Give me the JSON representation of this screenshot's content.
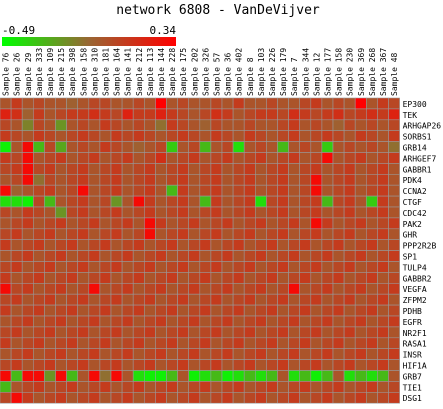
{
  "chart_data": {
    "type": "heatmap",
    "title": "network 6808 - VanDeVijver",
    "color_scale": {
      "min": -0.49,
      "max": 0.34,
      "min_label": "-0.49",
      "max_label": "0.34",
      "low_color": "#00ff00",
      "mid_color": "#996633",
      "high_color": "#ff0000"
    },
    "columns": [
      "Sample 76",
      "Sample 26",
      "Sample 29",
      "Sample 333",
      "Sample 109",
      "Sample 215",
      "Sample 398",
      "Sample 158",
      "Sample 310",
      "Sample 181",
      "Sample 164",
      "Sample 141",
      "Sample 212",
      "Sample 113",
      "Sample 144",
      "Sample 228",
      "Sample 175",
      "Sample 202",
      "Sample 326",
      "Sample 57",
      "Sample 36",
      "Sample 402",
      "Sample 8",
      "Sample 103",
      "Sample 226",
      "Sample 179",
      "Sample 7",
      "Sample 344",
      "Sample 12",
      "Sample 177",
      "Sample 158",
      "Sample 230",
      "Sample 369",
      "Sample 268",
      "Sample 367",
      "Sample 48"
    ],
    "rows": [
      "EP300",
      "TEK",
      "ARHGAP26",
      "SORBS1",
      "GRB14",
      "ARHGEF7",
      "GABBR1",
      "PDK4",
      "CCNA2",
      "CTGF",
      "CDC42",
      "PAK2",
      "GHR",
      "PPP2R2B",
      "SP1",
      "TULP4",
      "GABBR2",
      "VEGFA",
      "ZFPM2",
      "PDHB",
      "EGFR",
      "NR2F1",
      "RASA1",
      "INSR",
      "HIF1A",
      "GRB7",
      "TIE1",
      "DSG1"
    ],
    "values": [
      [
        0.0,
        0.1,
        0.0,
        0.05,
        0.0,
        0.0,
        -0.05,
        0.0,
        0.05,
        0.05,
        0.0,
        0.0,
        0.05,
        0.0,
        0.34,
        0.0,
        0.05,
        0.0,
        0.0,
        0.05,
        0.0,
        0.1,
        0.0,
        0.0,
        0.05,
        0.0,
        0.0,
        0.05,
        0.1,
        0.0,
        0.05,
        0.0,
        0.34,
        0.0,
        0.1,
        0.05
      ],
      [
        0.2,
        0.15,
        -0.05,
        0.1,
        0.0,
        0.05,
        0.1,
        0.1,
        0.15,
        0.1,
        0.05,
        0.2,
        0.1,
        0.1,
        0.2,
        0.1,
        0.05,
        0.0,
        0.05,
        0.15,
        0.1,
        0.0,
        0.05,
        0.1,
        0.1,
        0.05,
        0.15,
        0.1,
        0.05,
        0.1,
        0.15,
        0.05,
        0.1,
        0.15,
        0.1,
        0.2
      ],
      [
        0.05,
        0.0,
        -0.15,
        0.05,
        0.0,
        -0.2,
        0.0,
        0.05,
        0.0,
        0.1,
        0.05,
        0.0,
        0.05,
        0.0,
        -0.1,
        0.1,
        0.05,
        0.0,
        -0.05,
        0.05,
        0.0,
        0.0,
        0.05,
        0.0,
        0.0,
        0.05,
        0.1,
        0.0,
        0.05,
        0.0,
        -0.05,
        0.05,
        0.0,
        0.05,
        0.0,
        0.05
      ],
      [
        0.1,
        0.05,
        0.0,
        0.1,
        0.05,
        0.0,
        0.05,
        0.1,
        0.05,
        0.0,
        0.1,
        0.05,
        0.1,
        0.05,
        0.0,
        0.05,
        0.1,
        0.05,
        0.0,
        0.1,
        0.05,
        0.0,
        0.1,
        0.05,
        0.0,
        0.05,
        0.1,
        0.0,
        0.05,
        0.1,
        0.05,
        0.0,
        0.1,
        0.05,
        0.0,
        0.1
      ],
      [
        -0.45,
        0.0,
        0.3,
        -0.3,
        0.05,
        -0.25,
        0.0,
        0.05,
        0.0,
        0.1,
        0.05,
        0.0,
        -0.05,
        0.0,
        0.05,
        -0.35,
        0.0,
        0.05,
        -0.3,
        0.0,
        0.05,
        -0.4,
        0.0,
        0.05,
        0.0,
        -0.3,
        0.0,
        0.05,
        0.0,
        -0.35,
        0.0,
        0.05,
        0.0,
        0.05,
        0.0,
        -0.1
      ],
      [
        0.1,
        0.05,
        0.3,
        0.0,
        0.05,
        0.1,
        0.0,
        0.05,
        0.1,
        0.0,
        0.05,
        0.1,
        0.0,
        0.05,
        0.15,
        0.0,
        0.05,
        0.1,
        0.0,
        0.05,
        0.1,
        0.0,
        0.05,
        0.1,
        0.0,
        0.05,
        0.1,
        0.0,
        0.05,
        0.3,
        0.0,
        0.05,
        0.1,
        0.0,
        0.05,
        0.1
      ],
      [
        0.05,
        0.1,
        0.3,
        0.05,
        0.1,
        0.0,
        0.05,
        0.1,
        0.0,
        0.05,
        0.1,
        0.0,
        0.05,
        0.1,
        0.0,
        0.05,
        0.1,
        0.0,
        0.05,
        0.1,
        0.0,
        0.05,
        0.1,
        0.0,
        0.05,
        0.1,
        0.0,
        0.05,
        0.1,
        0.0,
        0.05,
        0.1,
        0.0,
        0.05,
        0.1,
        0.0
      ],
      [
        0.0,
        0.05,
        0.3,
        -0.1,
        0.05,
        0.0,
        0.05,
        0.1,
        0.0,
        0.05,
        0.1,
        0.0,
        0.05,
        0.1,
        0.0,
        0.05,
        0.1,
        0.0,
        0.05,
        0.1,
        0.0,
        0.05,
        0.1,
        0.0,
        0.05,
        0.1,
        0.0,
        0.05,
        0.3,
        0.0,
        0.05,
        0.1,
        0.0,
        0.05,
        0.1,
        0.0
      ],
      [
        0.3,
        -0.05,
        0.0,
        0.05,
        0.1,
        0.0,
        0.05,
        0.3,
        0.0,
        0.05,
        0.1,
        0.0,
        0.05,
        0.1,
        0.0,
        -0.3,
        0.1,
        0.0,
        0.05,
        0.1,
        0.0,
        0.05,
        0.1,
        0.0,
        0.05,
        0.1,
        0.0,
        0.05,
        0.3,
        0.0,
        0.05,
        0.1,
        0.0,
        0.05,
        0.1,
        0.0
      ],
      [
        -0.4,
        -0.4,
        -0.45,
        0.05,
        -0.3,
        0.0,
        0.05,
        0.1,
        0.0,
        0.05,
        -0.2,
        0.0,
        0.3,
        0.1,
        0.0,
        0.05,
        0.1,
        0.0,
        -0.3,
        0.1,
        0.0,
        0.05,
        0.1,
        -0.4,
        0.05,
        0.1,
        0.0,
        0.05,
        0.1,
        -0.3,
        0.05,
        0.1,
        0.0,
        -0.35,
        0.1,
        0.0
      ],
      [
        0.05,
        0.0,
        0.1,
        0.05,
        0.0,
        -0.2,
        0.05,
        0.1,
        0.0,
        0.05,
        0.1,
        0.0,
        0.05,
        0.1,
        0.0,
        0.05,
        0.1,
        0.0,
        0.05,
        0.1,
        0.0,
        0.05,
        0.1,
        0.0,
        0.05,
        0.1,
        0.0,
        0.05,
        0.1,
        0.0,
        0.05,
        0.1,
        0.0,
        0.05,
        0.1,
        0.0
      ],
      [
        0.0,
        0.05,
        0.1,
        0.0,
        0.05,
        0.1,
        0.0,
        0.05,
        0.1,
        0.0,
        0.05,
        0.1,
        0.0,
        0.3,
        0.1,
        0.0,
        0.05,
        0.1,
        0.0,
        0.05,
        0.1,
        0.0,
        0.05,
        0.1,
        0.0,
        0.05,
        0.1,
        0.0,
        0.3,
        0.1,
        0.0,
        0.05,
        0.1,
        0.0,
        0.05,
        0.1
      ],
      [
        0.05,
        0.1,
        0.0,
        0.05,
        0.1,
        0.0,
        0.05,
        0.1,
        0.0,
        0.05,
        0.1,
        0.0,
        0.05,
        0.3,
        0.0,
        0.05,
        0.1,
        0.0,
        0.05,
        0.1,
        0.0,
        0.05,
        0.1,
        0.0,
        0.05,
        0.1,
        0.0,
        0.05,
        0.1,
        0.0,
        0.05,
        0.1,
        0.0,
        0.05,
        0.1,
        0.0
      ],
      [
        0.1,
        0.0,
        0.05,
        0.1,
        0.0,
        0.05,
        0.1,
        0.0,
        0.05,
        0.1,
        0.0,
        0.05,
        0.1,
        0.0,
        0.05,
        0.1,
        0.0,
        0.05,
        0.1,
        0.0,
        0.05,
        0.1,
        0.0,
        0.05,
        0.1,
        0.0,
        0.05,
        0.1,
        0.0,
        0.05,
        0.1,
        0.0,
        0.05,
        0.1,
        0.0,
        0.05
      ],
      [
        0.0,
        0.05,
        0.1,
        0.0,
        0.05,
        0.1,
        0.0,
        0.05,
        0.1,
        0.0,
        0.05,
        0.1,
        0.0,
        0.05,
        0.1,
        0.0,
        0.05,
        0.1,
        0.0,
        0.05,
        0.1,
        0.0,
        0.05,
        0.1,
        0.0,
        0.05,
        0.1,
        0.0,
        0.05,
        0.1,
        0.0,
        0.05,
        0.1,
        0.0,
        0.05,
        0.1
      ],
      [
        0.05,
        0.1,
        0.0,
        0.05,
        0.1,
        0.0,
        0.05,
        0.1,
        0.0,
        0.05,
        0.1,
        0.0,
        0.05,
        0.1,
        0.0,
        0.05,
        0.1,
        0.0,
        0.05,
        0.1,
        0.0,
        0.05,
        0.1,
        0.0,
        0.05,
        0.1,
        0.0,
        0.05,
        0.1,
        0.0,
        0.05,
        0.1,
        0.0,
        0.05,
        0.1,
        0.0
      ],
      [
        0.1,
        0.0,
        0.05,
        0.1,
        0.0,
        0.05,
        0.1,
        0.0,
        0.05,
        0.1,
        0.0,
        0.05,
        0.1,
        0.0,
        0.05,
        0.1,
        0.0,
        0.05,
        0.1,
        0.0,
        0.05,
        0.1,
        0.0,
        0.05,
        0.1,
        0.0,
        0.05,
        0.1,
        0.0,
        0.05,
        0.1,
        0.0,
        0.05,
        0.1,
        0.0,
        0.05
      ],
      [
        0.3,
        0.05,
        0.1,
        0.0,
        0.05,
        0.1,
        0.0,
        0.05,
        0.3,
        0.0,
        0.05,
        0.1,
        0.0,
        0.05,
        0.1,
        0.0,
        0.05,
        0.1,
        0.0,
        0.05,
        0.1,
        0.0,
        0.05,
        0.1,
        0.0,
        0.05,
        0.3,
        0.0,
        0.05,
        0.1,
        0.0,
        0.05,
        0.1,
        0.0,
        0.05,
        0.1
      ],
      [
        0.05,
        0.1,
        0.0,
        0.05,
        0.1,
        0.0,
        0.05,
        0.1,
        0.0,
        0.05,
        0.1,
        0.0,
        0.05,
        0.1,
        0.0,
        0.05,
        0.1,
        0.0,
        0.05,
        0.1,
        0.0,
        0.05,
        0.1,
        0.0,
        0.05,
        0.1,
        0.0,
        0.05,
        0.1,
        0.0,
        0.05,
        0.1,
        0.0,
        0.05,
        0.1,
        0.0
      ],
      [
        0.1,
        0.0,
        0.05,
        0.1,
        0.0,
        0.05,
        0.1,
        0.0,
        0.05,
        0.1,
        0.0,
        0.05,
        0.1,
        0.0,
        0.05,
        0.1,
        0.0,
        0.05,
        0.1,
        0.0,
        0.05,
        0.1,
        0.0,
        0.05,
        0.1,
        0.0,
        0.05,
        0.1,
        0.0,
        0.05,
        0.1,
        0.0,
        0.05,
        0.1,
        0.0,
        0.05
      ],
      [
        0.0,
        0.05,
        0.1,
        0.0,
        0.05,
        0.1,
        0.0,
        0.05,
        0.1,
        0.0,
        0.05,
        0.1,
        0.0,
        0.05,
        0.1,
        0.0,
        0.05,
        0.1,
        0.0,
        0.05,
        0.1,
        0.0,
        0.05,
        0.1,
        0.0,
        0.05,
        0.1,
        0.0,
        0.05,
        0.1,
        0.0,
        0.05,
        0.1,
        0.0,
        0.05,
        0.1
      ],
      [
        0.05,
        0.1,
        0.0,
        0.05,
        0.1,
        0.0,
        0.05,
        0.1,
        0.0,
        0.05,
        0.1,
        0.0,
        0.05,
        0.1,
        0.0,
        0.05,
        0.1,
        0.0,
        0.05,
        0.1,
        0.0,
        0.05,
        0.1,
        0.0,
        0.05,
        0.1,
        0.0,
        0.05,
        0.1,
        0.0,
        0.05,
        0.1,
        0.0,
        0.05,
        0.1,
        0.0
      ],
      [
        0.1,
        0.0,
        0.05,
        0.1,
        0.0,
        0.05,
        0.1,
        0.0,
        0.05,
        0.1,
        0.0,
        0.05,
        0.1,
        0.0,
        0.05,
        0.1,
        0.0,
        0.05,
        0.1,
        0.0,
        0.05,
        0.1,
        0.0,
        0.05,
        0.1,
        0.0,
        0.05,
        0.1,
        0.0,
        0.05,
        0.1,
        0.0,
        0.05,
        0.1,
        0.0,
        0.05
      ],
      [
        0.0,
        0.05,
        0.1,
        0.0,
        0.05,
        0.1,
        0.0,
        0.05,
        0.1,
        0.0,
        0.05,
        0.1,
        0.0,
        0.05,
        0.1,
        0.0,
        0.05,
        0.1,
        0.0,
        0.05,
        0.1,
        0.0,
        0.05,
        0.1,
        0.0,
        0.05,
        0.1,
        0.0,
        0.05,
        0.1,
        0.0,
        0.05,
        0.1,
        0.0,
        0.05,
        0.1
      ],
      [
        0.05,
        0.1,
        0.0,
        0.05,
        0.1,
        0.0,
        0.05,
        0.1,
        0.0,
        0.05,
        0.1,
        0.0,
        0.05,
        0.1,
        0.0,
        0.05,
        0.1,
        0.0,
        0.05,
        0.1,
        0.0,
        0.05,
        0.1,
        0.0,
        0.05,
        0.1,
        0.0,
        0.05,
        0.1,
        0.0,
        0.05,
        0.1,
        0.0,
        0.05,
        0.1,
        0.0
      ],
      [
        0.3,
        -0.3,
        0.3,
        0.3,
        -0.2,
        0.3,
        -0.3,
        0.0,
        0.3,
        -0.1,
        0.3,
        0.0,
        -0.4,
        -0.45,
        -0.45,
        -0.3,
        0.0,
        -0.45,
        -0.4,
        -0.3,
        -0.45,
        -0.4,
        -0.3,
        -0.4,
        -0.3,
        0.0,
        -0.4,
        -0.3,
        -0.45,
        -0.3,
        0.0,
        -0.4,
        -0.3,
        -0.4,
        -0.3,
        0.0
      ],
      [
        -0.3,
        0.0,
        0.05,
        0.1,
        0.0,
        0.05,
        0.1,
        0.0,
        0.05,
        0.1,
        0.0,
        0.05,
        0.1,
        0.0,
        0.05,
        0.1,
        0.0,
        0.05,
        0.1,
        0.0,
        0.05,
        0.1,
        0.0,
        0.05,
        0.1,
        0.0,
        0.05,
        0.1,
        0.0,
        0.05,
        0.1,
        0.0,
        0.05,
        0.1,
        0.0,
        0.05
      ],
      [
        0.05,
        0.3,
        0.1,
        0.0,
        0.05,
        0.1,
        0.0,
        0.05,
        0.1,
        0.0,
        0.05,
        0.1,
        0.0,
        0.05,
        0.1,
        0.0,
        0.05,
        0.1,
        0.0,
        0.05,
        0.1,
        0.0,
        0.05,
        0.1,
        0.0,
        0.05,
        0.1,
        0.0,
        0.05,
        0.1,
        0.0,
        0.05,
        0.1,
        0.0,
        0.05,
        0.1
      ]
    ]
  }
}
